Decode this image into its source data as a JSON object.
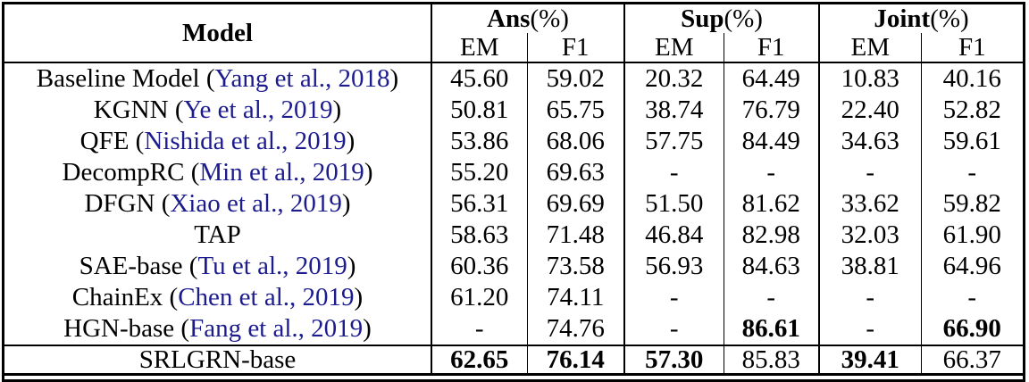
{
  "colors": {
    "citation_link": "#1c1c8f",
    "border": "#000000",
    "text": "#000000",
    "background": "#ffffff"
  },
  "table": {
    "header": {
      "model_label": "Model",
      "groups": [
        {
          "name": "Ans",
          "suffix": "(%)"
        },
        {
          "name": "Sup",
          "suffix": "(%)"
        },
        {
          "name": "Joint",
          "suffix": "(%)"
        }
      ],
      "sub": [
        "EM",
        "F1",
        "EM",
        "F1",
        "EM",
        "F1"
      ]
    },
    "rows": [
      {
        "model": {
          "pre": "Baseline Model (",
          "citation": "Yang et al., 2018",
          "post": ")"
        },
        "cells": [
          {
            "t": "45.60",
            "b": false
          },
          {
            "t": "59.02",
            "b": false
          },
          {
            "t": "20.32",
            "b": false
          },
          {
            "t": "64.49",
            "b": false
          },
          {
            "t": "10.83",
            "b": false
          },
          {
            "t": "40.16",
            "b": false
          }
        ]
      },
      {
        "model": {
          "pre": "KGNN (",
          "citation": "Ye et al., 2019",
          "post": ")"
        },
        "cells": [
          {
            "t": "50.81",
            "b": false
          },
          {
            "t": "65.75",
            "b": false
          },
          {
            "t": "38.74",
            "b": false
          },
          {
            "t": "76.79",
            "b": false
          },
          {
            "t": "22.40",
            "b": false
          },
          {
            "t": "52.82",
            "b": false
          }
        ]
      },
      {
        "model": {
          "pre": "QFE (",
          "citation": "Nishida et al., 2019",
          "post": ")"
        },
        "cells": [
          {
            "t": "53.86",
            "b": false
          },
          {
            "t": "68.06",
            "b": false
          },
          {
            "t": "57.75",
            "b": false
          },
          {
            "t": "84.49",
            "b": false
          },
          {
            "t": "34.63",
            "b": false
          },
          {
            "t": "59.61",
            "b": false
          }
        ]
      },
      {
        "model": {
          "pre": "DecompRC (",
          "citation": "Min et al., 2019",
          "post": ")"
        },
        "cells": [
          {
            "t": "55.20",
            "b": false
          },
          {
            "t": "69.63",
            "b": false
          },
          {
            "t": "-",
            "b": false
          },
          {
            "t": "-",
            "b": false
          },
          {
            "t": "-",
            "b": false
          },
          {
            "t": "-",
            "b": false
          }
        ]
      },
      {
        "model": {
          "pre": "DFGN (",
          "citation": "Xiao et al., 2019",
          "post": ")"
        },
        "cells": [
          {
            "t": "56.31",
            "b": false
          },
          {
            "t": "69.69",
            "b": false
          },
          {
            "t": "51.50",
            "b": false
          },
          {
            "t": "81.62",
            "b": false
          },
          {
            "t": "33.62",
            "b": false
          },
          {
            "t": "59.82",
            "b": false
          }
        ]
      },
      {
        "model": {
          "pre": "TAP",
          "citation": "",
          "post": ""
        },
        "cells": [
          {
            "t": "58.63",
            "b": false
          },
          {
            "t": "71.48",
            "b": false
          },
          {
            "t": "46.84",
            "b": false
          },
          {
            "t": "82.98",
            "b": false
          },
          {
            "t": "32.03",
            "b": false
          },
          {
            "t": "61.90",
            "b": false
          }
        ]
      },
      {
        "model": {
          "pre": "SAE-base (",
          "citation": "Tu et al., 2019",
          "post": ")"
        },
        "cells": [
          {
            "t": "60.36",
            "b": false
          },
          {
            "t": "73.58",
            "b": false
          },
          {
            "t": "56.93",
            "b": false
          },
          {
            "t": "84.63",
            "b": false
          },
          {
            "t": "38.81",
            "b": false
          },
          {
            "t": "64.96",
            "b": false
          }
        ]
      },
      {
        "model": {
          "pre": "ChainEx (",
          "citation": "Chen et al., 2019",
          "post": ")"
        },
        "cells": [
          {
            "t": "61.20",
            "b": false
          },
          {
            "t": "74.11",
            "b": false
          },
          {
            "t": "-",
            "b": false
          },
          {
            "t": "-",
            "b": false
          },
          {
            "t": "-",
            "b": false
          },
          {
            "t": "-",
            "b": false
          }
        ]
      },
      {
        "model": {
          "pre": "HGN-base (",
          "citation": "Fang et al., 2019",
          "post": ")"
        },
        "cells": [
          {
            "t": "-",
            "b": false
          },
          {
            "t": "74.76",
            "b": false
          },
          {
            "t": "-",
            "b": false
          },
          {
            "t": "86.61",
            "b": true
          },
          {
            "t": "-",
            "b": false
          },
          {
            "t": "66.90",
            "b": true
          }
        ]
      },
      {
        "final": true,
        "model": {
          "pre": "SRLGRN-base",
          "citation": "",
          "post": ""
        },
        "cells": [
          {
            "t": "62.65",
            "b": true
          },
          {
            "t": "76.14",
            "b": true
          },
          {
            "t": "57.30",
            "b": true
          },
          {
            "t": "85.83",
            "b": false
          },
          {
            "t": "39.41",
            "b": true
          },
          {
            "t": "66.37",
            "b": false
          }
        ]
      }
    ]
  }
}
